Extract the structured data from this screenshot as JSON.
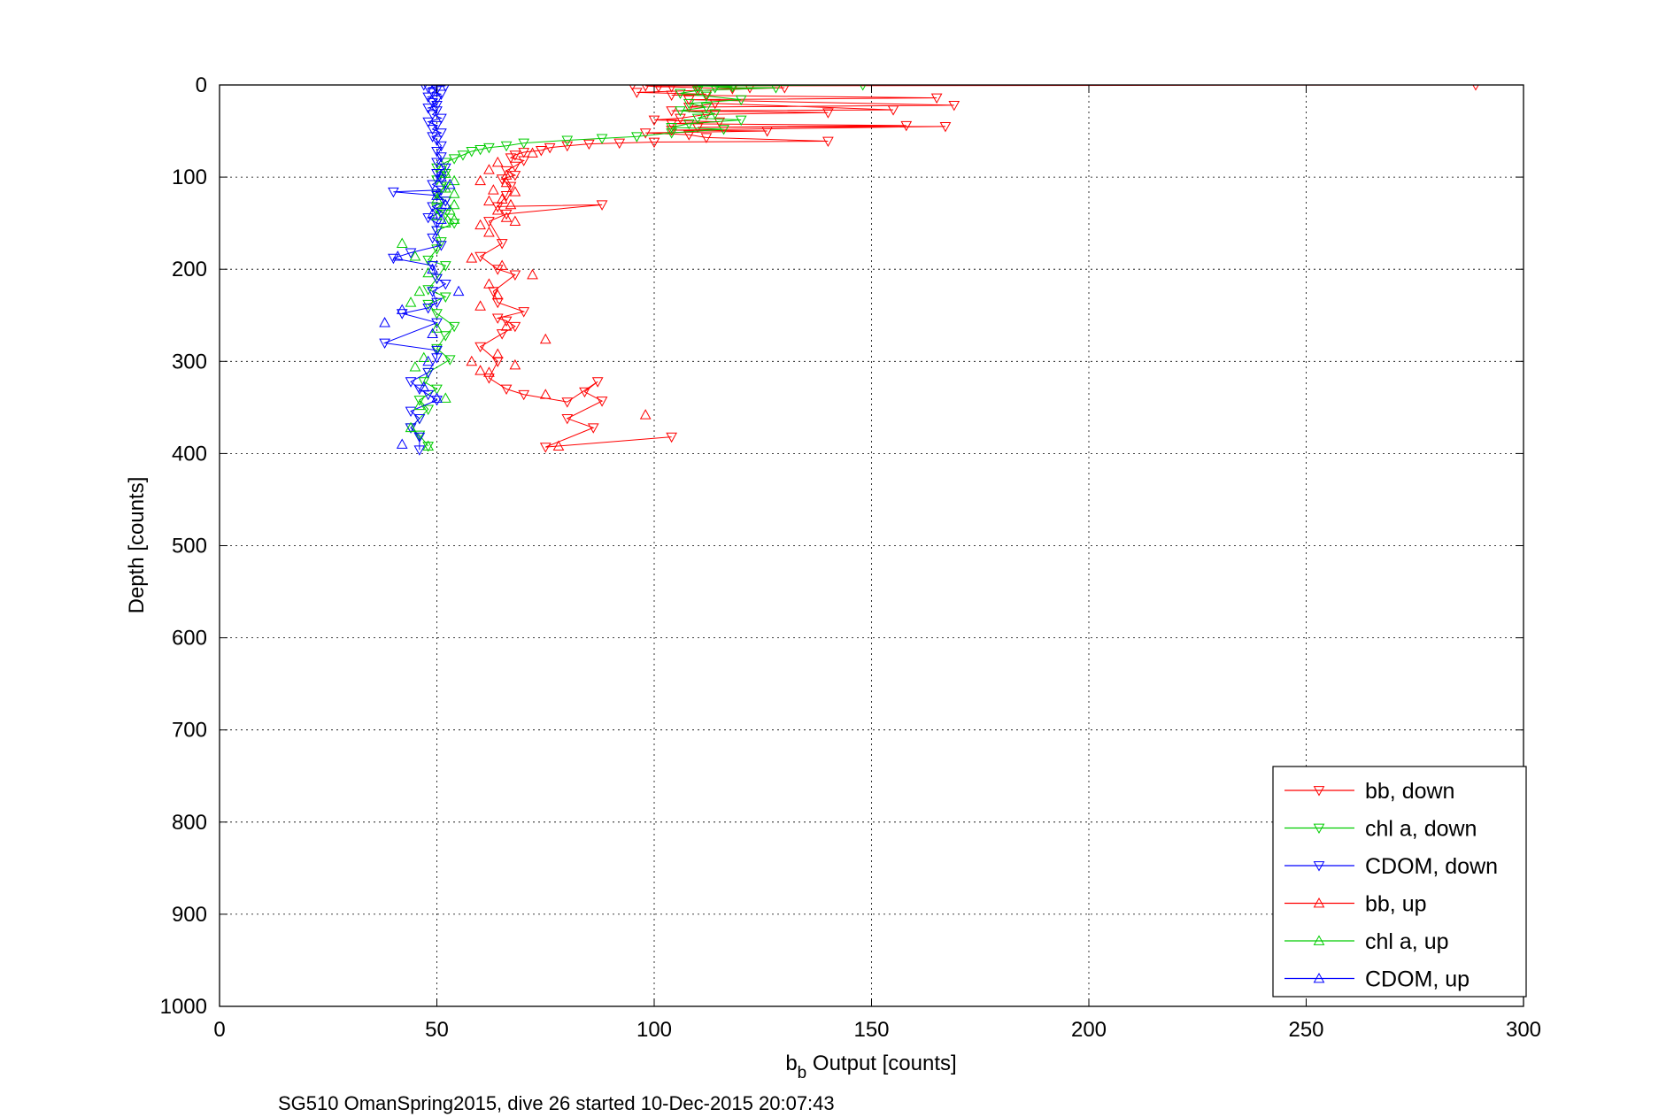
{
  "chart_data": {
    "type": "scatter",
    "title": "",
    "xlabel_main": "b",
    "xlabel_sub": "b",
    "xlabel_rest": " Output [counts]",
    "ylabel": "Depth [counts]",
    "caption": "SG510 OmanSpring2015, dive 26 started 10-Dec-2015 20:07:43",
    "xlim": [
      0,
      300
    ],
    "ylim": [
      0,
      1000
    ],
    "y_reversed": true,
    "grid": true,
    "legend_position": "bottom-right",
    "xticks": [
      0,
      50,
      100,
      150,
      200,
      250,
      300
    ],
    "yticks": [
      0,
      100,
      200,
      300,
      400,
      500,
      600,
      700,
      800,
      900,
      1000
    ],
    "series": [
      {
        "name": "bb, down",
        "color": "#ff0000",
        "marker": "triangle-down",
        "line": true,
        "points": [
          [
            95,
            0
          ],
          [
            289,
            0
          ],
          [
            98,
            1
          ],
          [
            101,
            2
          ],
          [
            104,
            2
          ],
          [
            110,
            3
          ],
          [
            118,
            4
          ],
          [
            122,
            3
          ],
          [
            130,
            3
          ],
          [
            96,
            8
          ],
          [
            112,
            10
          ],
          [
            104,
            11
          ],
          [
            165,
            14
          ],
          [
            108,
            16
          ],
          [
            169,
            22
          ],
          [
            108,
            24
          ],
          [
            114,
            20
          ],
          [
            155,
            27
          ],
          [
            104,
            28
          ],
          [
            140,
            30
          ],
          [
            112,
            32
          ],
          [
            106,
            36
          ],
          [
            100,
            38
          ],
          [
            115,
            40
          ],
          [
            104,
            42
          ],
          [
            158,
            44
          ],
          [
            110,
            46
          ],
          [
            167,
            45
          ],
          [
            104,
            49
          ],
          [
            126,
            50
          ],
          [
            98,
            52
          ],
          [
            108,
            54
          ],
          [
            112,
            57
          ],
          [
            140,
            61
          ],
          [
            100,
            62
          ],
          [
            92,
            63
          ],
          [
            85,
            64
          ],
          [
            80,
            66
          ],
          [
            76,
            68
          ],
          [
            74,
            71
          ],
          [
            70,
            73
          ],
          [
            68,
            76
          ],
          [
            67,
            79
          ],
          [
            70,
            82
          ],
          [
            68,
            88
          ],
          [
            66,
            93
          ],
          [
            68,
            98
          ],
          [
            65,
            102
          ],
          [
            67,
            110
          ],
          [
            66,
            120
          ],
          [
            64,
            132
          ],
          [
            88,
            130
          ],
          [
            66,
            140
          ],
          [
            62,
            148
          ],
          [
            65,
            172
          ],
          [
            60,
            186
          ],
          [
            64,
            200
          ],
          [
            68,
            206
          ],
          [
            63,
            224
          ],
          [
            64,
            236
          ],
          [
            70,
            246
          ],
          [
            64,
            253
          ],
          [
            66,
            256
          ],
          [
            68,
            262
          ],
          [
            65,
            270
          ],
          [
            60,
            284
          ],
          [
            64,
            300
          ],
          [
            62,
            318
          ],
          [
            66,
            330
          ],
          [
            70,
            336
          ],
          [
            80,
            344
          ],
          [
            87,
            322
          ],
          [
            84,
            333
          ],
          [
            88,
            343
          ],
          [
            80,
            362
          ],
          [
            86,
            372
          ],
          [
            75,
            393
          ],
          [
            104,
            382
          ]
        ]
      },
      {
        "name": "chl a, down",
        "color": "#00cc00",
        "marker": "triangle-down",
        "line": true,
        "points": [
          [
            148,
            0
          ],
          [
            110,
            1
          ],
          [
            118,
            2
          ],
          [
            114,
            3
          ],
          [
            128,
            3
          ],
          [
            110,
            6
          ],
          [
            106,
            9
          ],
          [
            112,
            12
          ],
          [
            120,
            16
          ],
          [
            108,
            20
          ],
          [
            112,
            24
          ],
          [
            106,
            28
          ],
          [
            114,
            31
          ],
          [
            110,
            36
          ],
          [
            120,
            38
          ],
          [
            108,
            42
          ],
          [
            104,
            46
          ],
          [
            116,
            48
          ],
          [
            104,
            52
          ],
          [
            96,
            56
          ],
          [
            88,
            58
          ],
          [
            80,
            60
          ],
          [
            70,
            63
          ],
          [
            66,
            66
          ],
          [
            62,
            68
          ],
          [
            60,
            70
          ],
          [
            58,
            72
          ],
          [
            56,
            76
          ],
          [
            54,
            80
          ],
          [
            52,
            84
          ],
          [
            50,
            90
          ],
          [
            52,
            96
          ],
          [
            50,
            103
          ],
          [
            52,
            110
          ],
          [
            50,
            118
          ],
          [
            52,
            126
          ],
          [
            50,
            134
          ],
          [
            52,
            140
          ],
          [
            54,
            150
          ],
          [
            50,
            158
          ],
          [
            51,
            170
          ],
          [
            50,
            178
          ],
          [
            48,
            190
          ],
          [
            52,
            196
          ],
          [
            50,
            210
          ],
          [
            48,
            222
          ],
          [
            52,
            230
          ],
          [
            48,
            238
          ],
          [
            50,
            248
          ],
          [
            54,
            262
          ],
          [
            52,
            272
          ],
          [
            50,
            286
          ],
          [
            53,
            298
          ],
          [
            48,
            312
          ],
          [
            47,
            322
          ],
          [
            50,
            330
          ],
          [
            46,
            342
          ],
          [
            48,
            352
          ],
          [
            46,
            362
          ],
          [
            44,
            372
          ],
          [
            46,
            380
          ],
          [
            48,
            392
          ]
        ]
      },
      {
        "name": "CDOM, down",
        "color": "#0000ff",
        "marker": "triangle-down",
        "line": true,
        "points": [
          [
            47,
            0
          ],
          [
            52,
            1
          ],
          [
            48,
            3
          ],
          [
            50,
            5
          ],
          [
            49,
            8
          ],
          [
            51,
            10
          ],
          [
            48,
            13
          ],
          [
            50,
            16
          ],
          [
            49,
            19
          ],
          [
            50,
            22
          ],
          [
            48,
            25
          ],
          [
            50,
            28
          ],
          [
            49,
            32
          ],
          [
            51,
            36
          ],
          [
            48,
            40
          ],
          [
            50,
            44
          ],
          [
            49,
            48
          ],
          [
            51,
            52
          ],
          [
            49,
            56
          ],
          [
            50,
            60
          ],
          [
            51,
            66
          ],
          [
            50,
            72
          ],
          [
            51,
            78
          ],
          [
            50,
            84
          ],
          [
            52,
            90
          ],
          [
            50,
            96
          ],
          [
            51,
            102
          ],
          [
            49,
            108
          ],
          [
            51,
            114
          ],
          [
            40,
            116
          ],
          [
            50,
            120
          ],
          [
            52,
            126
          ],
          [
            49,
            132
          ],
          [
            51,
            138
          ],
          [
            48,
            144
          ],
          [
            50,
            150
          ],
          [
            50,
            158
          ],
          [
            49,
            166
          ],
          [
            51,
            174
          ],
          [
            44,
            182
          ],
          [
            40,
            188
          ],
          [
            49,
            196
          ],
          [
            50,
            210
          ],
          [
            52,
            216
          ],
          [
            49,
            224
          ],
          [
            50,
            236
          ],
          [
            48,
            242
          ],
          [
            42,
            248
          ],
          [
            50,
            258
          ],
          [
            38,
            280
          ],
          [
            50,
            288
          ],
          [
            50,
            296
          ],
          [
            48,
            312
          ],
          [
            44,
            322
          ],
          [
            46,
            330
          ],
          [
            48,
            336
          ],
          [
            50,
            342
          ],
          [
            44,
            354
          ],
          [
            46,
            362
          ],
          [
            44,
            372
          ],
          [
            46,
            382
          ],
          [
            46,
            396
          ]
        ]
      },
      {
        "name": "bb, up",
        "color": "#ff0000",
        "marker": "triangle-up",
        "line": false,
        "points": [
          [
            72,
            74
          ],
          [
            64,
            84
          ],
          [
            62,
            92
          ],
          [
            66,
            98
          ],
          [
            60,
            104
          ],
          [
            66,
            106
          ],
          [
            63,
            114
          ],
          [
            68,
            116
          ],
          [
            65,
            124
          ],
          [
            62,
            126
          ],
          [
            67,
            130
          ],
          [
            64,
            136
          ],
          [
            66,
            144
          ],
          [
            68,
            148
          ],
          [
            60,
            152
          ],
          [
            62,
            160
          ],
          [
            58,
            188
          ],
          [
            65,
            196
          ],
          [
            72,
            206
          ],
          [
            62,
            216
          ],
          [
            64,
            228
          ],
          [
            60,
            240
          ],
          [
            66,
            262
          ],
          [
            75,
            276
          ],
          [
            64,
            292
          ],
          [
            58,
            300
          ],
          [
            68,
            304
          ],
          [
            60,
            310
          ],
          [
            62,
            312
          ],
          [
            75,
            336
          ],
          [
            98,
            358
          ],
          [
            78,
            392
          ]
        ]
      },
      {
        "name": "chl a, up",
        "color": "#00cc00",
        "marker": "triangle-up",
        "line": false,
        "points": [
          [
            52,
            96
          ],
          [
            54,
            104
          ],
          [
            52,
            112
          ],
          [
            54,
            118
          ],
          [
            50,
            124
          ],
          [
            54,
            130
          ],
          [
            53,
            136
          ],
          [
            50,
            142
          ],
          [
            54,
            146
          ],
          [
            52,
            150
          ],
          [
            42,
            172
          ],
          [
            45,
            186
          ],
          [
            48,
            204
          ],
          [
            46,
            224
          ],
          [
            44,
            236
          ],
          [
            50,
            264
          ],
          [
            47,
            296
          ],
          [
            45,
            306
          ],
          [
            52,
            340
          ],
          [
            46,
            348
          ],
          [
            44,
            372
          ],
          [
            48,
            392
          ]
        ]
      },
      {
        "name": "CDOM, up",
        "color": "#0000ff",
        "marker": "triangle-up",
        "line": false,
        "points": [
          [
            51,
            100
          ],
          [
            53,
            108
          ],
          [
            50,
            120
          ],
          [
            52,
            130
          ],
          [
            49,
            140
          ],
          [
            51,
            146
          ],
          [
            41,
            186
          ],
          [
            49,
            200
          ],
          [
            55,
            224
          ],
          [
            42,
            244
          ],
          [
            38,
            258
          ],
          [
            49,
            270
          ],
          [
            48,
            300
          ],
          [
            47,
            328
          ],
          [
            50,
            340
          ],
          [
            42,
            390
          ]
        ]
      }
    ]
  }
}
